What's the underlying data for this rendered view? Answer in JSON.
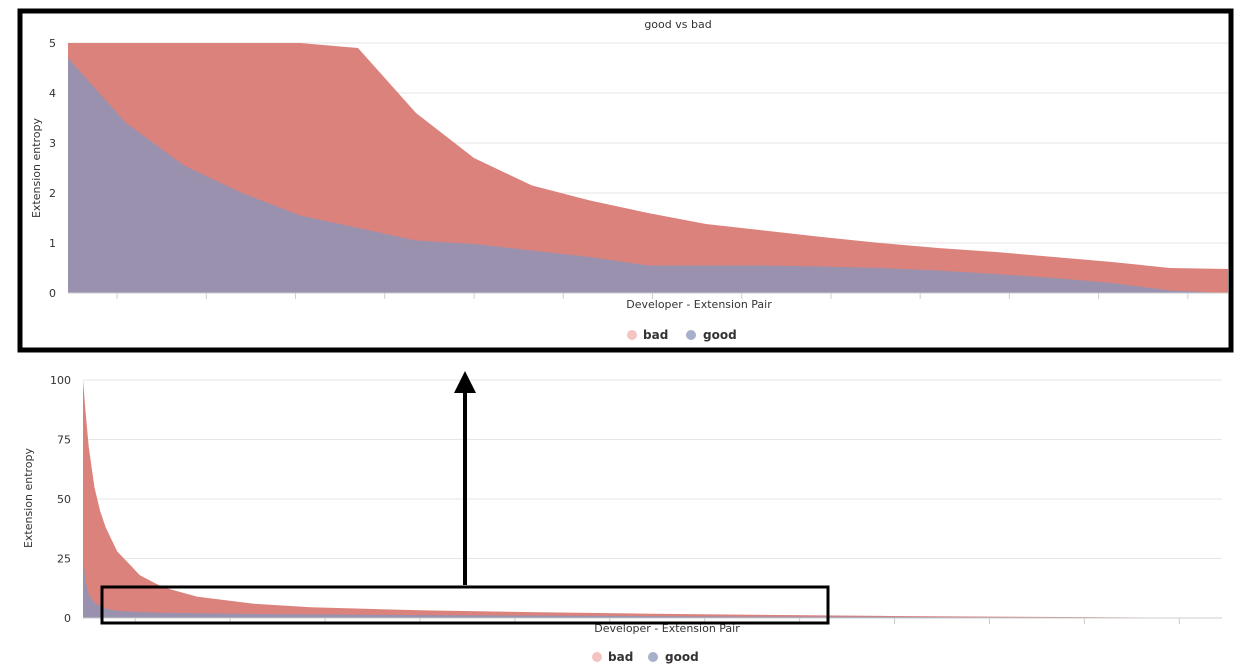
{
  "colors": {
    "bad": "#d97b76",
    "good": "#9892b0",
    "legend_bad": "#f2c4c2",
    "legend_good": "#a7b0cb",
    "frame": "#000000",
    "grid": "#e6e6e6"
  },
  "chart_data": [
    {
      "type": "area",
      "panel": "zoomed",
      "title": "good vs bad",
      "xlabel": "Developer - Extension Pair",
      "ylabel": "Extension entropy",
      "ylim": [
        0,
        5
      ],
      "yticks": [
        "0",
        "1",
        "2",
        "3",
        "4",
        "5"
      ],
      "legend": [
        "bad",
        "good"
      ],
      "x": [
        0,
        0.05,
        0.1,
        0.15,
        0.2,
        0.25,
        0.3,
        0.35,
        0.4,
        0.45,
        0.5,
        0.55,
        0.6,
        0.65,
        0.7,
        0.75,
        0.8,
        0.85,
        0.9,
        0.95,
        1.0
      ],
      "series": [
        {
          "name": "bad",
          "values": [
            5.0,
            5.0,
            5.0,
            5.0,
            5.0,
            4.9,
            3.6,
            2.7,
            2.15,
            1.85,
            1.6,
            1.38,
            1.25,
            1.12,
            1.0,
            0.9,
            0.82,
            0.72,
            0.62,
            0.5,
            0.48
          ]
        },
        {
          "name": "good",
          "values": [
            4.7,
            3.4,
            2.55,
            2.0,
            1.55,
            1.3,
            1.05,
            0.98,
            0.85,
            0.72,
            0.55,
            0.55,
            0.55,
            0.53,
            0.5,
            0.45,
            0.38,
            0.3,
            0.2,
            0.05,
            0.0
          ]
        }
      ]
    },
    {
      "type": "area",
      "panel": "full",
      "title": "",
      "xlabel": "Developer - Extension Pair",
      "ylabel": "Extension entropy",
      "ylim": [
        0,
        100
      ],
      "yticks": [
        "0",
        "25",
        "50",
        "75",
        "100"
      ],
      "legend": [
        "bad",
        "good"
      ],
      "x": [
        0,
        0.002,
        0.005,
        0.01,
        0.015,
        0.02,
        0.03,
        0.05,
        0.07,
        0.1,
        0.15,
        0.2,
        0.3,
        0.4,
        0.5,
        0.6,
        0.7,
        0.8,
        0.9,
        1.0
      ],
      "series": [
        {
          "name": "bad",
          "values": [
            100,
            88,
            72,
            55,
            45,
            38,
            28,
            18,
            13,
            9,
            6,
            4.5,
            3.2,
            2.4,
            1.8,
            1.3,
            0.9,
            0.6,
            0.3,
            0.1
          ]
        },
        {
          "name": "good",
          "values": [
            27,
            16,
            10,
            6.5,
            5,
            4,
            3,
            2.5,
            2.2,
            2,
            1.7,
            1.5,
            1.2,
            1,
            0.8,
            0.6,
            0.5,
            0.35,
            0.2,
            0.1
          ]
        }
      ]
    }
  ]
}
